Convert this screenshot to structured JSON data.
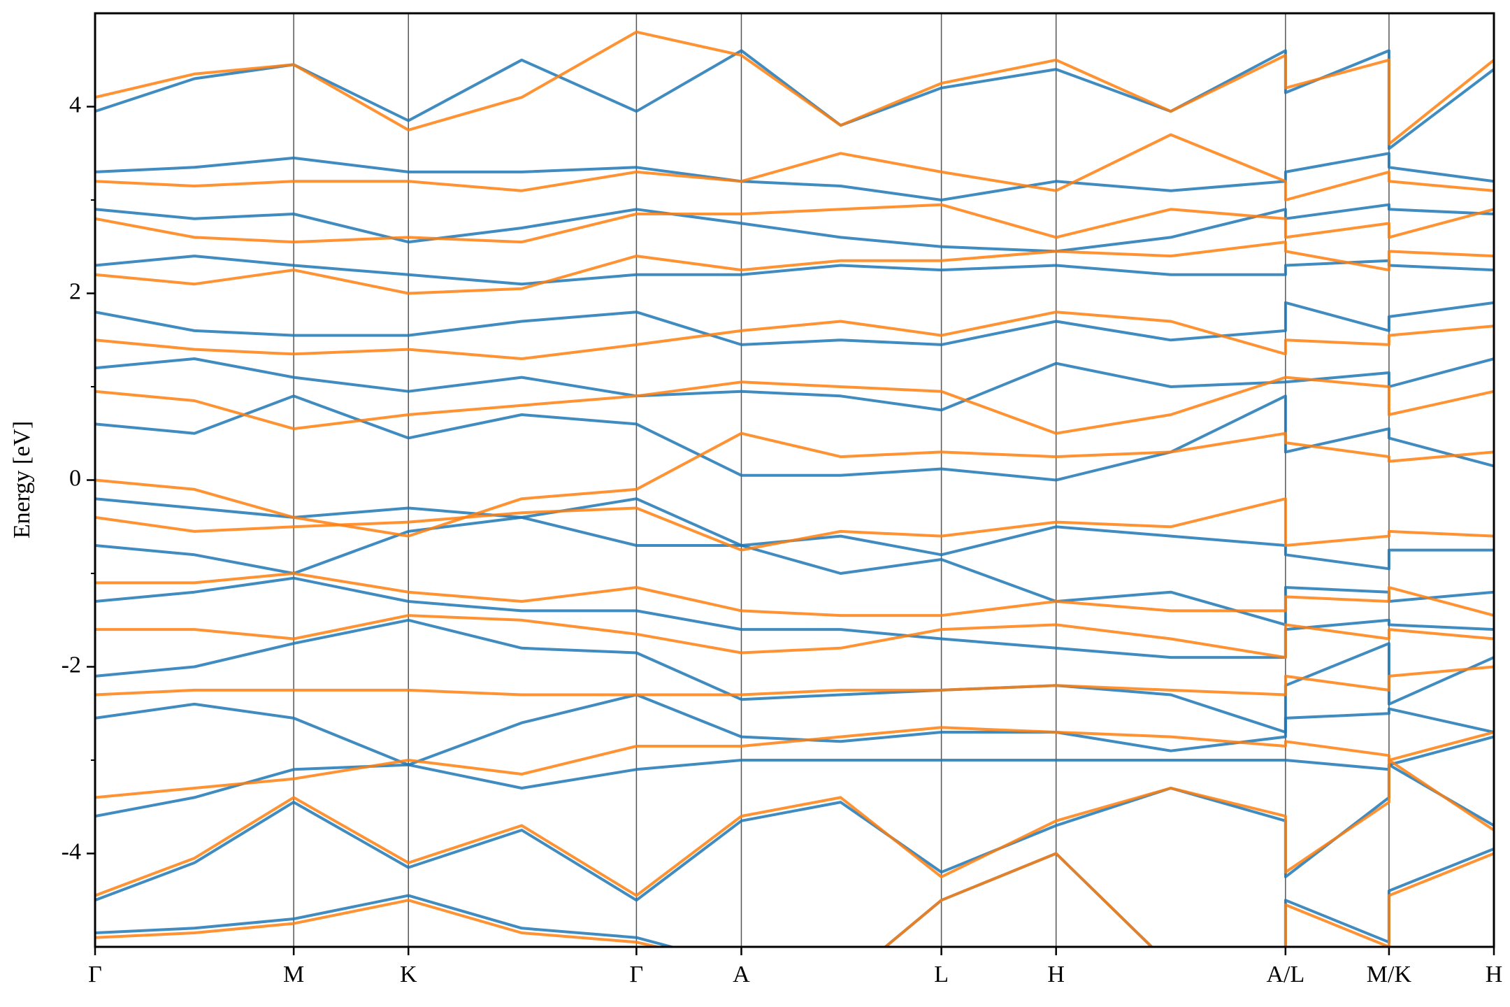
{
  "chart_data": {
    "type": "line",
    "ylabel": "Energy [eV]",
    "xlim": [
      0,
      1
    ],
    "xticks": [
      {
        "value": 0,
        "label": "Γ"
      },
      {
        "value": 0.142,
        "label": "M"
      },
      {
        "value": 0.224,
        "label": "K"
      },
      {
        "value": 0.387,
        "label": "Γ"
      },
      {
        "value": 0.462,
        "label": "A"
      },
      {
        "value": 0.605,
        "label": "L"
      },
      {
        "value": 0.687,
        "label": "H"
      },
      {
        "value": 0.851,
        "label": "A/L"
      },
      {
        "value": 0.925,
        "label": "M/K"
      },
      {
        "value": 1,
        "label": "H"
      }
    ],
    "ylim": [
      -5,
      5
    ],
    "yticks": [
      -4,
      -2,
      0,
      2,
      4
    ],
    "yminorticks": [
      -3,
      -1,
      1,
      3
    ],
    "x": [
      0,
      0.071,
      0.142,
      0.224,
      0.305,
      0.387,
      0.462,
      0.533,
      0.605,
      0.687,
      0.769,
      0.851,
      0.851,
      0.925,
      0.925,
      1
    ],
    "series": [
      {
        "color": "#1f77b4",
        "values": [
          -4.85,
          -4.8,
          -4.7,
          -4.45,
          -4.8,
          -4.9,
          -5.2,
          -5.4,
          -4.5,
          -4.0,
          -5.2,
          -5.6,
          -4.5,
          -4.95,
          -4.4,
          -3.95
        ]
      },
      {
        "color": "#1f77b4",
        "values": [
          -4.5,
          -4.1,
          -3.45,
          -4.15,
          -3.75,
          -4.5,
          -3.65,
          -3.45,
          -4.2,
          -3.7,
          -3.3,
          -3.65,
          -4.25,
          -3.4,
          -3.05,
          -3.7
        ]
      },
      {
        "color": "#1f77b4",
        "values": [
          -3.6,
          -3.4,
          -3.1,
          -3.05,
          -3.3,
          -3.1,
          -3.0,
          -3.0,
          -3.0,
          -3.0,
          -3.0,
          -3.0,
          -3.0,
          -3.1,
          -3.05,
          -2.75
        ]
      },
      {
        "color": "#1f77b4",
        "values": [
          -2.55,
          -2.4,
          -2.55,
          -3.05,
          -2.6,
          -2.3,
          -2.75,
          -2.8,
          -2.7,
          -2.7,
          -2.9,
          -2.75,
          -2.55,
          -2.5,
          -2.45,
          -2.7
        ]
      },
      {
        "color": "#1f77b4",
        "values": [
          -2.1,
          -2.0,
          -1.75,
          -1.5,
          -1.8,
          -1.85,
          -2.35,
          -2.3,
          -2.25,
          -2.2,
          -2.3,
          -2.7,
          -2.2,
          -1.75,
          -2.4,
          -1.9
        ]
      },
      {
        "color": "#1f77b4",
        "values": [
          -1.3,
          -1.2,
          -1.05,
          -1.3,
          -1.4,
          -1.4,
          -1.6,
          -1.6,
          -1.7,
          -1.8,
          -1.9,
          -1.9,
          -1.6,
          -1.5,
          -1.55,
          -1.6
        ]
      },
      {
        "color": "#1f77b4",
        "values": [
          -0.7,
          -0.8,
          -1.0,
          -0.55,
          -0.4,
          -0.7,
          -0.7,
          -1.0,
          -0.85,
          -1.3,
          -1.2,
          -1.55,
          -1.15,
          -1.2,
          -1.3,
          -1.2
        ]
      },
      {
        "color": "#1f77b4",
        "values": [
          -0.2,
          -0.3,
          -0.4,
          -0.3,
          -0.4,
          -0.2,
          -0.7,
          -0.6,
          -0.8,
          -0.5,
          -0.6,
          -0.7,
          -0.8,
          -0.95,
          -0.75,
          -0.75
        ]
      },
      {
        "color": "#1f77b4",
        "values": [
          0.6,
          0.5,
          0.9,
          0.45,
          0.7,
          0.6,
          0.05,
          0.05,
          0.12,
          0.0,
          0.3,
          0.9,
          0.3,
          0.55,
          0.45,
          0.15
        ]
      },
      {
        "color": "#1f77b4",
        "values": [
          1.2,
          1.3,
          1.1,
          0.95,
          1.1,
          0.9,
          0.95,
          0.9,
          0.75,
          1.25,
          1.0,
          1.05,
          1.05,
          1.15,
          1.0,
          1.3
        ]
      },
      {
        "color": "#1f77b4",
        "values": [
          1.8,
          1.6,
          1.55,
          1.55,
          1.7,
          1.8,
          1.45,
          1.5,
          1.45,
          1.7,
          1.5,
          1.6,
          1.9,
          1.6,
          1.75,
          1.9
        ]
      },
      {
        "color": "#1f77b4",
        "values": [
          2.3,
          2.4,
          2.3,
          2.2,
          2.1,
          2.2,
          2.2,
          2.3,
          2.25,
          2.3,
          2.2,
          2.2,
          2.3,
          2.35,
          2.3,
          2.25
        ]
      },
      {
        "color": "#1f77b4",
        "values": [
          2.9,
          2.8,
          2.85,
          2.55,
          2.7,
          2.9,
          2.75,
          2.6,
          2.5,
          2.45,
          2.6,
          2.9,
          2.8,
          2.95,
          2.9,
          2.85
        ]
      },
      {
        "color": "#1f77b4",
        "values": [
          3.3,
          3.35,
          3.45,
          3.3,
          3.3,
          3.35,
          3.2,
          3.15,
          3.0,
          3.2,
          3.1,
          3.2,
          3.3,
          3.5,
          3.35,
          3.2
        ]
      },
      {
        "color": "#1f77b4",
        "values": [
          3.95,
          4.3,
          4.45,
          3.85,
          4.5,
          3.95,
          4.6,
          3.8,
          4.2,
          4.4,
          3.95,
          4.6,
          4.15,
          4.6,
          3.55,
          4.4
        ]
      },
      {
        "color": "#ff7f0e",
        "values": [
          -4.9,
          -4.85,
          -4.75,
          -4.5,
          -4.85,
          -4.95,
          -5.2,
          -5.4,
          -4.5,
          -4.0,
          -5.2,
          -5.6,
          -4.55,
          -5.0,
          -4.45,
          -4.0
        ]
      },
      {
        "color": "#ff7f0e",
        "values": [
          -4.45,
          -4.05,
          -3.4,
          -4.1,
          -3.7,
          -4.45,
          -3.6,
          -3.4,
          -4.25,
          -3.65,
          -3.3,
          -3.6,
          -4.2,
          -3.45,
          -3.0,
          -3.75
        ]
      },
      {
        "color": "#ff7f0e",
        "values": [
          -3.4,
          -3.3,
          -3.2,
          -3.0,
          -3.15,
          -2.85,
          -2.85,
          -2.75,
          -2.65,
          -2.7,
          -2.75,
          -2.85,
          -2.8,
          -2.95,
          -3.0,
          -2.7
        ]
      },
      {
        "color": "#ff7f0e",
        "values": [
          -2.3,
          -2.25,
          -2.25,
          -2.25,
          -2.3,
          -2.3,
          -2.3,
          -2.25,
          -2.25,
          -2.2,
          -2.25,
          -2.3,
          -2.1,
          -2.25,
          -2.1,
          -2.0
        ]
      },
      {
        "color": "#ff7f0e",
        "values": [
          -1.6,
          -1.6,
          -1.7,
          -1.45,
          -1.5,
          -1.65,
          -1.85,
          -1.8,
          -1.6,
          -1.55,
          -1.7,
          -1.9,
          -1.55,
          -1.7,
          -1.6,
          -1.7
        ]
      },
      {
        "color": "#ff7f0e",
        "values": [
          -1.1,
          -1.1,
          -1.0,
          -1.2,
          -1.3,
          -1.15,
          -1.4,
          -1.45,
          -1.45,
          -1.3,
          -1.4,
          -1.4,
          -1.25,
          -1.3,
          -1.15,
          -1.45
        ]
      },
      {
        "color": "#ff7f0e",
        "values": [
          -0.4,
          -0.55,
          -0.5,
          -0.45,
          -0.35,
          -0.3,
          -0.75,
          -0.55,
          -0.6,
          -0.45,
          -0.5,
          -0.2,
          -0.7,
          -0.6,
          -0.55,
          -0.6
        ]
      },
      {
        "color": "#ff7f0e",
        "values": [
          0.0,
          -0.1,
          -0.4,
          -0.6,
          -0.2,
          -0.1,
          0.5,
          0.25,
          0.3,
          0.25,
          0.3,
          0.5,
          0.4,
          0.25,
          0.2,
          0.3
        ]
      },
      {
        "color": "#ff7f0e",
        "values": [
          0.95,
          0.85,
          0.55,
          0.7,
          0.8,
          0.9,
          1.05,
          1.0,
          0.95,
          0.5,
          0.7,
          1.1,
          1.1,
          1.0,
          0.7,
          0.95
        ]
      },
      {
        "color": "#ff7f0e",
        "values": [
          1.5,
          1.4,
          1.35,
          1.4,
          1.3,
          1.45,
          1.6,
          1.7,
          1.55,
          1.8,
          1.7,
          1.35,
          1.5,
          1.45,
          1.55,
          1.65
        ]
      },
      {
        "color": "#ff7f0e",
        "values": [
          2.2,
          2.1,
          2.25,
          2.0,
          2.05,
          2.4,
          2.25,
          2.35,
          2.35,
          2.45,
          2.4,
          2.55,
          2.45,
          2.25,
          2.45,
          2.4
        ]
      },
      {
        "color": "#ff7f0e",
        "values": [
          2.8,
          2.6,
          2.55,
          2.6,
          2.55,
          2.85,
          2.85,
          2.9,
          2.95,
          2.6,
          2.9,
          2.8,
          2.6,
          2.75,
          2.6,
          2.9
        ]
      },
      {
        "color": "#ff7f0e",
        "values": [
          3.2,
          3.15,
          3.2,
          3.2,
          3.1,
          3.3,
          3.2,
          3.5,
          3.3,
          3.1,
          3.7,
          3.2,
          3.0,
          3.3,
          3.2,
          3.1
        ]
      },
      {
        "color": "#ff7f0e",
        "values": [
          4.1,
          4.35,
          4.45,
          3.75,
          4.1,
          4.8,
          4.55,
          3.8,
          4.25,
          4.5,
          3.95,
          4.55,
          4.2,
          4.5,
          3.6,
          4.5
        ]
      }
    ]
  }
}
